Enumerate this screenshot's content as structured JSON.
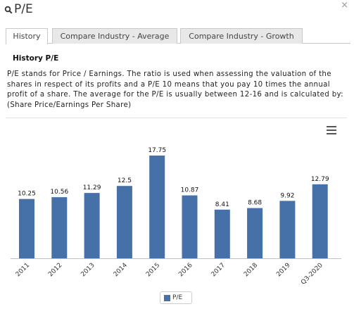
{
  "header": {
    "title": "P/E",
    "close_glyph": "×"
  },
  "tabs": [
    {
      "label": "History",
      "active": true
    },
    {
      "label": "Compare Industry - Average",
      "active": false
    },
    {
      "label": "Compare Industry - Growth",
      "active": false
    }
  ],
  "panel": {
    "title": "History P/E",
    "description": "P/E stands for Price / Earnings. The ratio is used when assessing the valuation of the shares in respect of its profits and a P/E 10 means that you pay 10 times the annual profit of a share. The average for the P/E is usually between 12-16 and is calculated by: (Share Price/Earnings Per Share)"
  },
  "icons": {
    "search": "search-icon",
    "menu": "hamburger-menu-icon",
    "close": "close-icon"
  },
  "colors": {
    "bar": "#4670a8"
  },
  "chart_data": {
    "type": "bar",
    "categories": [
      "2011",
      "2012",
      "2013",
      "2014",
      "2015",
      "2016",
      "2017",
      "2018",
      "2019",
      "Q3-2020"
    ],
    "series": [
      {
        "name": "P/E",
        "values": [
          10.25,
          10.56,
          11.29,
          12.5,
          17.75,
          10.87,
          8.41,
          8.68,
          9.92,
          12.79
        ]
      }
    ],
    "ylim": [
      0,
      17.75
    ],
    "grid": false,
    "legend": "bottom-center",
    "data_labels": true
  }
}
